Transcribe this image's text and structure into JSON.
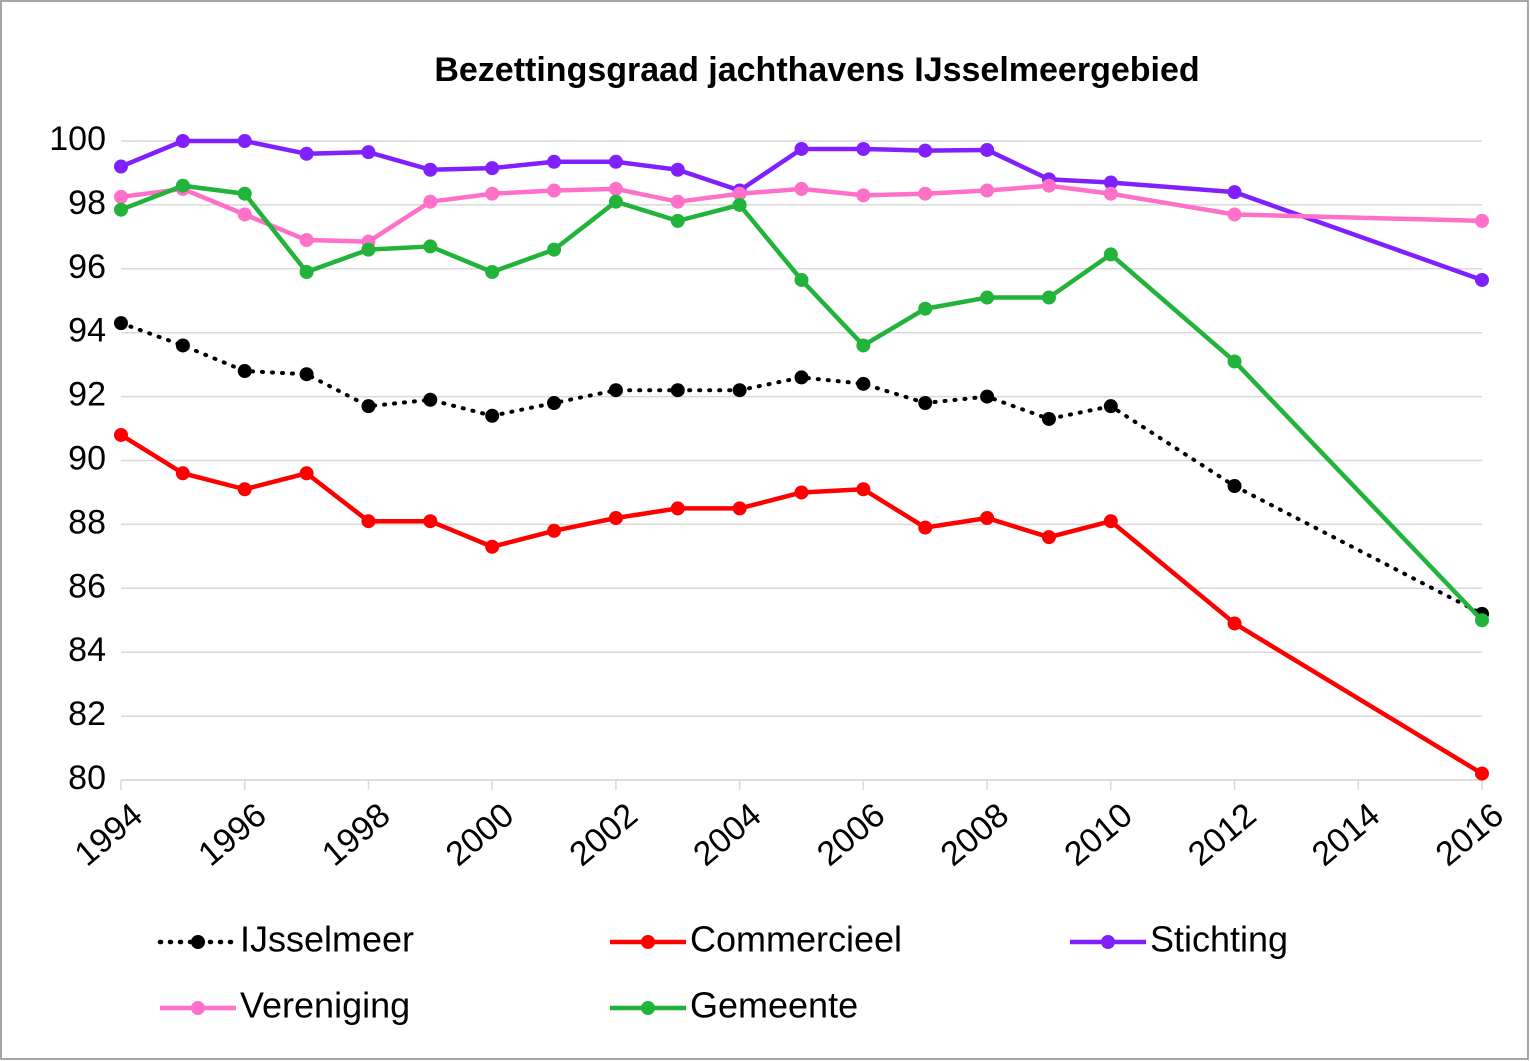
{
  "chart_data": {
    "type": "line",
    "title": "Bezettingsgraad jachthavens IJsselmeergebied",
    "x": [
      1994,
      1995,
      1996,
      1997,
      1998,
      1999,
      2000,
      2001,
      2002,
      2003,
      2004,
      2005,
      2006,
      2007,
      2008,
      2009,
      2010,
      2012,
      2016
    ],
    "series": [
      {
        "name": "IJsselmeer",
        "color": "#000000",
        "dash": "dotted",
        "values": [
          94.3,
          93.6,
          92.8,
          92.7,
          91.7,
          91.9,
          91.4,
          91.8,
          92.2,
          92.2,
          92.2,
          92.6,
          92.4,
          91.8,
          92.0,
          91.3,
          91.7,
          89.2,
          85.2
        ]
      },
      {
        "name": "Commercieel",
        "color": "#ff0000",
        "values": [
          90.8,
          89.6,
          89.1,
          89.6,
          88.1,
          88.1,
          87.3,
          87.8,
          88.2,
          88.5,
          88.5,
          89.0,
          89.1,
          87.9,
          88.2,
          87.6,
          88.1,
          84.9,
          80.2
        ]
      },
      {
        "name": "Stichting",
        "color": "#8020ff",
        "values": [
          99.2,
          100.0,
          100.0,
          99.6,
          99.65,
          99.1,
          99.15,
          99.35,
          99.35,
          99.1,
          98.45,
          99.75,
          99.75,
          99.7,
          99.72,
          98.8,
          98.7,
          98.4,
          95.65
        ]
      },
      {
        "name": "Vereniging",
        "color": "#ff70c8",
        "values": [
          98.25,
          98.5,
          97.7,
          96.9,
          96.85,
          98.1,
          98.35,
          98.45,
          98.5,
          98.1,
          98.35,
          98.5,
          98.3,
          98.35,
          98.45,
          98.6,
          98.35,
          97.7,
          97.5
        ]
      },
      {
        "name": "Gemeente",
        "color": "#22b33a",
        "values": [
          97.85,
          98.6,
          98.35,
          95.9,
          96.6,
          96.7,
          95.9,
          96.6,
          98.1,
          97.5,
          98.0,
          95.65,
          93.6,
          94.75,
          95.1,
          95.1,
          96.45,
          93.1,
          85.0
        ]
      }
    ],
    "xlim": [
      1994,
      2016
    ],
    "xticks": [
      1994,
      1996,
      1998,
      2000,
      2002,
      2004,
      2006,
      2008,
      2010,
      2012,
      2014,
      2016
    ],
    "ylim": [
      80,
      100
    ],
    "yticks": [
      80,
      82,
      84,
      86,
      88,
      90,
      92,
      94,
      96,
      98,
      100
    ],
    "grid": true,
    "legend": "bottom"
  }
}
